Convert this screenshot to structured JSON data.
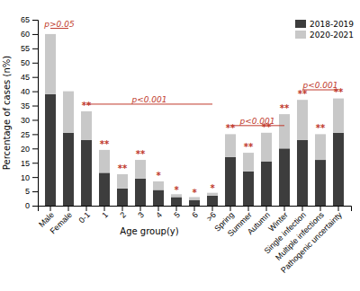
{
  "chart_data": {
    "type": "bar",
    "stacked": true,
    "categories": [
      "Male",
      "Female",
      "0-1",
      "1",
      "2",
      "3",
      "4",
      "5",
      "6",
      ">6",
      "Spring",
      "Summer",
      "Autumn",
      "Winter",
      "Single infection",
      "Multiple infections",
      "Pathogenic uncertainty"
    ],
    "series": [
      {
        "name": "2018-2019",
        "color": "#3d3d3d",
        "values": [
          39.0,
          25.5,
          23.0,
          11.5,
          6.0,
          9.5,
          5.5,
          3.0,
          2.0,
          3.5,
          17.0,
          12.0,
          15.5,
          20.0,
          23.0,
          16.0,
          25.5
        ]
      },
      {
        "name": "2020-2021",
        "color": "#c8c8c8",
        "values": [
          21.0,
          14.5,
          10.0,
          8.0,
          5.0,
          6.5,
          3.0,
          1.0,
          1.0,
          1.0,
          8.0,
          6.5,
          10.0,
          12.0,
          14.0,
          9.0,
          12.0
        ]
      }
    ],
    "ylim": [
      0,
      65
    ],
    "yticks": [
      0,
      5,
      10,
      15,
      20,
      25,
      30,
      35,
      40,
      45,
      50,
      55,
      60,
      65
    ],
    "ylabel": "Percentage of cases (n%)",
    "grid": false,
    "legend": "upper right",
    "group_labels": [
      {
        "text": "Age group(y)",
        "from": "0-1",
        "to": ">6"
      }
    ],
    "annotations": [
      {
        "text": "p>0.05",
        "from": "Male",
        "to": "Female",
        "y_line": 62.0,
        "y_text": 62.5,
        "color": "#c0392b"
      },
      {
        "text": "p<0.001",
        "from": "0-1",
        "to": ">6",
        "y_line": 35.5,
        "y_text": 36.0,
        "color": "#c0392b"
      },
      {
        "text": "p<0.001",
        "from": "Spring",
        "to": "Winter",
        "y_line": 28.0,
        "y_text": 28.5,
        "color": "#c0392b"
      },
      {
        "text": "p<0.001",
        "from": "Single infection",
        "to": "Pathogenic uncertainty",
        "y_line": 40.5,
        "y_text": 41.0,
        "color": "#c0392b"
      }
    ],
    "stars": [
      {
        "category": "0-1",
        "text": "**",
        "y": 34.0,
        "color": "#c0392b"
      },
      {
        "category": "1",
        "text": "**",
        "y": 20.5,
        "color": "#c0392b"
      },
      {
        "category": "2",
        "text": "**",
        "y": 12.0,
        "color": "#c0392b"
      },
      {
        "category": "3",
        "text": "**",
        "y": 17.0,
        "color": "#c0392b"
      },
      {
        "category": "4",
        "text": "*",
        "y": 9.5,
        "color": "#c0392b"
      },
      {
        "category": "5",
        "text": "*",
        "y": 4.5,
        "color": "#c0392b"
      },
      {
        "category": "6",
        "text": "*",
        "y": 3.5,
        "color": "#c0392b"
      },
      {
        "category": ">6",
        "text": "*",
        "y": 5.0,
        "color": "#c0392b"
      },
      {
        "category": "Spring",
        "text": "**",
        "y": 26.0,
        "color": "#c0392b"
      },
      {
        "category": "Summer",
        "text": "**",
        "y": 19.5,
        "color": "#c0392b"
      },
      {
        "category": "Autumn",
        "text": "**",
        "y": 26.5,
        "color": "#c0392b"
      },
      {
        "category": "Winter",
        "text": "**",
        "y": 33.0,
        "color": "#c0392b"
      },
      {
        "category": "Single infection",
        "text": "**",
        "y": 38.0,
        "color": "#c0392b"
      },
      {
        "category": "Multiple infections",
        "text": "**",
        "y": 26.0,
        "color": "#c0392b"
      },
      {
        "category": "Pathogenic uncertainty",
        "text": "**",
        "y": 38.5,
        "color": "#c0392b"
      }
    ]
  }
}
